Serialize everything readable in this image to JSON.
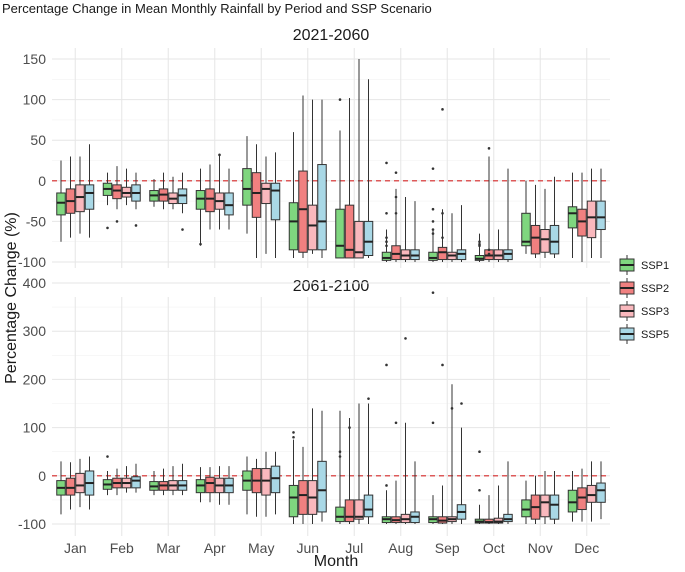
{
  "chart_data": {
    "type": "boxplot",
    "title": "Percentage Change in Mean Monthly Rainfall by Period and SSP Scenario",
    "xlabel": "Month",
    "ylabel": "Percentage Change (%)",
    "categories": [
      "Jan",
      "Feb",
      "Mar",
      "Apr",
      "May",
      "Jun",
      "Jul",
      "Aug",
      "Sep",
      "Oct",
      "Nov",
      "Dec"
    ],
    "legend": {
      "position": "right",
      "items": [
        {
          "name": "SSP1",
          "color": "#7fd67f"
        },
        {
          "name": "SSP2",
          "color": "#f08080"
        },
        {
          "name": "SSP3",
          "color": "#f9b8bd"
        },
        {
          "name": "SSP5",
          "color": "#a9d8e6"
        }
      ]
    },
    "reference_line": {
      "y": 0,
      "color": "#d62728",
      "style": "dashed"
    },
    "panels": [
      {
        "title": "2021-2060",
        "ylim": [
          -110,
          155
        ],
        "yticks": [
          -100,
          -50,
          0,
          50,
          100,
          150
        ],
        "series": [
          {
            "name": "SSP1",
            "boxes": [
              [
                -75,
                -42,
                -27,
                -15,
                25
              ],
              [
                -30,
                -18,
                -10,
                -3,
                10
              ],
              [
                -32,
                -25,
                -18,
                -12,
                2
              ],
              [
                -80,
                -35,
                -22,
                -12,
                15
              ],
              [
                -65,
                -30,
                -10,
                15,
                55
              ],
              [
                -95,
                -85,
                -50,
                -27,
                60
              ],
              [
                -95,
                -95,
                -80,
                -35,
                62
              ],
              [
                -100,
                -98,
                -95,
                -88,
                -60
              ],
              [
                -100,
                -98,
                -95,
                -88,
                -60
              ],
              [
                -100,
                -98,
                -96,
                -92,
                -65
              ],
              [
                -90,
                -80,
                -75,
                -40,
                0
              ],
              [
                -95,
                -58,
                -40,
                -32,
                10
              ]
            ],
            "outliers": [
              [],
              [
                -58
              ],
              [],
              [
                -78
              ],
              [],
              [],
              [
                100
              ],
              [
                -70,
                -75,
                -80,
                22,
                -40
              ],
              [
                -60,
                -65,
                -50,
                15,
                -35
              ],
              [
                -75,
                -78,
                -80
              ],
              [],
              []
            ]
          },
          {
            "name": "SSP2",
            "boxes": [
              [
                -70,
                -40,
                -25,
                -10,
                30
              ],
              [
                -35,
                -22,
                -12,
                -5,
                18
              ],
              [
                -35,
                -25,
                -17,
                -10,
                10
              ],
              [
                -60,
                -38,
                -22,
                -10,
                20
              ],
              [
                -95,
                -45,
                -15,
                10,
                45
              ],
              [
                -95,
                -88,
                -35,
                12,
                105
              ],
              [
                -95,
                -95,
                -85,
                -30,
                102
              ],
              [
                -100,
                -97,
                -90,
                -80,
                -10
              ],
              [
                -100,
                -97,
                -88,
                -82,
                -35
              ],
              [
                -100,
                -97,
                -92,
                -85,
                30
              ],
              [
                -95,
                -90,
                -70,
                -55,
                -5
              ],
              [
                -100,
                -68,
                -50,
                -35,
                10
              ]
            ],
            "outliers": [
              [],
              [
                -50
              ],
              [],
              [],
              [],
              [],
              [],
              [
                -20,
                -40,
                10
              ],
              [
                -70,
                -40,
                88
              ],
              [
                -85,
                -90,
                40
              ],
              [],
              []
            ]
          },
          {
            "name": "SSP3",
            "boxes": [
              [
                -65,
                -38,
                -20,
                -5,
                30
              ],
              [
                -30,
                -20,
                -15,
                -8,
                15
              ],
              [
                -35,
                -28,
                -22,
                -15,
                5
              ],
              [
                -60,
                -35,
                -25,
                -15,
                32
              ],
              [
                -90,
                -28,
                -10,
                -3,
                30
              ],
              [
                -90,
                -85,
                -55,
                -30,
                100
              ],
              [
                -95,
                -95,
                -88,
                -50,
                150
              ],
              [
                -100,
                -97,
                -92,
                -85,
                -20
              ],
              [
                -100,
                -97,
                -92,
                -88,
                -40
              ],
              [
                -100,
                -97,
                -92,
                -85,
                -60
              ],
              [
                -95,
                -88,
                -72,
                -60,
                -10
              ],
              [
                -95,
                -70,
                -45,
                -25,
                15
              ]
            ],
            "outliers": [
              [],
              [],
              [],
              [
                32
              ],
              [],
              [],
              [],
              [],
              [],
              [],
              [],
              []
            ]
          },
          {
            "name": "SSP5",
            "boxes": [
              [
                -70,
                -35,
                -15,
                -5,
                45
              ],
              [
                -35,
                -25,
                -15,
                -5,
                10
              ],
              [
                -40,
                -28,
                -18,
                -10,
                10
              ],
              [
                -60,
                -42,
                -30,
                -15,
                15
              ],
              [
                -95,
                -48,
                -12,
                -3,
                35
              ],
              [
                -95,
                -85,
                -50,
                20,
                100
              ],
              [
                -95,
                -92,
                -75,
                -50,
                125
              ],
              [
                -100,
                -97,
                -92,
                -85,
                -25
              ],
              [
                -100,
                -97,
                -90,
                -85,
                -30
              ],
              [
                -100,
                -97,
                -90,
                -85,
                15
              ],
              [
                -95,
                -90,
                -75,
                -55,
                5
              ],
              [
                -95,
                -60,
                -45,
                -25,
                15
              ]
            ],
            "outliers": [
              [],
              [
                -55
              ],
              [
                -60
              ],
              [],
              [],
              [],
              [],
              [],
              [],
              [],
              [],
              []
            ]
          }
        ]
      },
      {
        "title": "2061-2100",
        "ylim": [
          -110,
          410
        ],
        "yticks": [
          -100,
          0,
          100,
          200,
          300,
          400
        ],
        "series": [
          {
            "name": "SSP1",
            "boxes": [
              [
                -80,
                -40,
                -25,
                -10,
                30
              ],
              [
                -40,
                -28,
                -18,
                -8,
                10
              ],
              [
                -40,
                -30,
                -22,
                -12,
                10
              ],
              [
                -55,
                -35,
                -20,
                -8,
                18
              ],
              [
                -80,
                -30,
                -10,
                10,
                40
              ],
              [
                -100,
                -85,
                -45,
                -20,
                75
              ],
              [
                -100,
                -95,
                -85,
                -65,
                135
              ],
              [
                -100,
                -97,
                -90,
                -85,
                -30
              ],
              [
                -100,
                -97,
                -90,
                -85,
                -40
              ],
              [
                -100,
                -98,
                -95,
                -90,
                -60
              ],
              [
                -100,
                -85,
                -70,
                -50,
                -10
              ],
              [
                -95,
                -75,
                -55,
                -30,
                10
              ]
            ],
            "outliers": [
              [],
              [
                40
              ],
              [],
              [],
              [],
              [
                90,
                80
              ],
              [
                50,
                40
              ],
              [
                230,
                -20
              ],
              [
                380,
                110
              ],
              [
                50,
                -30
              ],
              [],
              []
            ]
          },
          {
            "name": "SSP2",
            "boxes": [
              [
                -70,
                -40,
                -25,
                -5,
                28
              ],
              [
                -40,
                -25,
                -15,
                -5,
                15
              ],
              [
                -40,
                -30,
                -20,
                -12,
                15
              ],
              [
                -55,
                -35,
                -15,
                -3,
                18
              ],
              [
                -85,
                -35,
                -10,
                15,
                35
              ],
              [
                -100,
                -80,
                -40,
                -10,
                60
              ],
              [
                -100,
                -95,
                -85,
                -50,
                120
              ],
              [
                -100,
                -97,
                -92,
                -85,
                -10
              ],
              [
                -100,
                -98,
                -93,
                -85,
                -20
              ],
              [
                -100,
                -98,
                -96,
                -90,
                -40
              ],
              [
                -100,
                -90,
                -65,
                -40,
                0
              ],
              [
                -95,
                -70,
                -45,
                -25,
                15
              ]
            ],
            "outliers": [
              [],
              [],
              [],
              [],
              [],
              [],
              [
                100
              ],
              [
                110
              ],
              [
                230
              ],
              [],
              [],
              []
            ]
          },
          {
            "name": "SSP3",
            "boxes": [
              [
                -65,
                -35,
                -20,
                5,
                35
              ],
              [
                -35,
                -25,
                -15,
                -5,
                20
              ],
              [
                -40,
                -30,
                -20,
                -10,
                20
              ],
              [
                -60,
                -35,
                -20,
                -5,
                20
              ],
              [
                -85,
                -40,
                -10,
                15,
                50
              ],
              [
                -100,
                -80,
                -45,
                -10,
                140
              ],
              [
                -100,
                -90,
                -85,
                -50,
                150
              ],
              [
                -100,
                -97,
                -90,
                -80,
                110
              ],
              [
                -100,
                -95,
                -90,
                -85,
                190
              ],
              [
                -100,
                -98,
                -95,
                -88,
                -20
              ],
              [
                -100,
                -85,
                -55,
                -40,
                10
              ],
              [
                -95,
                -55,
                -40,
                -20,
                30
              ]
            ],
            "outliers": [
              [],
              [],
              [],
              [],
              [],
              [],
              [],
              [
                285
              ],
              [
                140
              ],
              [],
              [],
              []
            ]
          },
          {
            "name": "SSP5",
            "boxes": [
              [
                -70,
                -40,
                -15,
                10,
                40
              ],
              [
                -35,
                -25,
                -10,
                -2,
                25
              ],
              [
                -40,
                -30,
                -20,
                -10,
                25
              ],
              [
                -60,
                -35,
                -20,
                -5,
                20
              ],
              [
                -80,
                -35,
                -5,
                20,
                50
              ],
              [
                -95,
                -75,
                -30,
                30,
                135
              ],
              [
                -100,
                -85,
                -70,
                -40,
                150
              ],
              [
                -100,
                -97,
                -85,
                -75,
                30
              ],
              [
                -100,
                -90,
                -75,
                -60,
                100
              ],
              [
                -100,
                -95,
                -90,
                -80,
                30
              ],
              [
                -100,
                -90,
                -60,
                -40,
                10
              ],
              [
                -90,
                -55,
                -30,
                -15,
                30
              ]
            ],
            "outliers": [
              [],
              [],
              [],
              [],
              [],
              [],
              [
                160
              ],
              [],
              [
                150
              ],
              [],
              [],
              []
            ]
          }
        ]
      }
    ]
  }
}
